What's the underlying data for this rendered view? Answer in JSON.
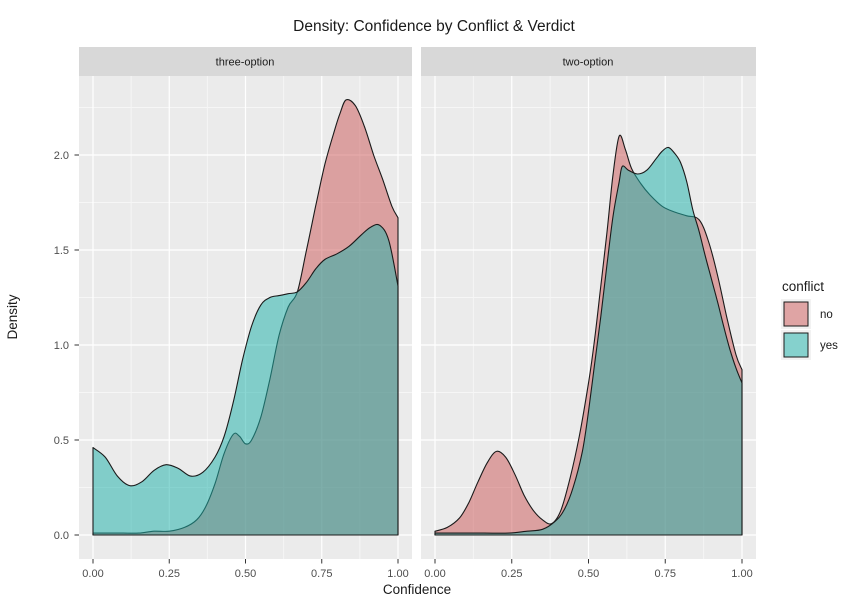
{
  "colors": {
    "panel_bg": "#EBEBEB",
    "strip_bg": "#D8D8D8",
    "grid_major": "#FFFFFF",
    "grid_minor": "#F6F6F6",
    "fill_no": "rgba(205,92,92,0.52)",
    "fill_yes": "rgba(32,178,170,0.52)",
    "curve_stroke": "#1A1A1A",
    "tick_stroke": "#333333",
    "axis_text": "#4D4D4D",
    "text": "#1A1A1A",
    "legend_key_bg": "#F2F2F2"
  },
  "chart_data": {
    "type": "area",
    "title": "Density: Confidence by Conflict & Verdict",
    "xlabel": "Confidence",
    "ylabel": "Density",
    "xlim": [
      0,
      1
    ],
    "ylim": [
      0,
      2.42
    ],
    "grid": true,
    "x_tick_values": [
      0,
      0.25,
      0.5,
      0.75,
      1.0
    ],
    "x_tick_labels": [
      "0.00",
      "0.25",
      "0.50",
      "0.75",
      "1.00"
    ],
    "y_tick_values": [
      0,
      0.5,
      1.0,
      1.5,
      2.0
    ],
    "y_tick_labels": [
      "0.0",
      "0.5",
      "1.0",
      "1.5",
      "2.0"
    ],
    "x_minor_values": [
      0.125,
      0.375,
      0.625,
      0.875
    ],
    "y_minor_values": [
      0.25,
      0.75,
      1.25,
      1.75,
      2.25
    ],
    "legend": {
      "title": "conflict",
      "position": "right",
      "entries": [
        {
          "label": "no",
          "fill": "rgba(205,92,92,0.52)"
        },
        {
          "label": "yes",
          "fill": "rgba(32,178,170,0.52)"
        }
      ]
    },
    "facets": [
      {
        "label": "three-option",
        "series": [
          {
            "name": "no",
            "x": [
              0.0,
              0.05,
              0.1,
              0.15,
              0.2,
              0.25,
              0.3,
              0.34,
              0.37,
              0.4,
              0.43,
              0.46,
              0.48,
              0.5,
              0.52,
              0.55,
              0.58,
              0.61,
              0.64,
              0.67,
              0.7,
              0.73,
              0.76,
              0.79,
              0.81,
              0.83,
              0.86,
              0.89,
              0.92,
              0.95,
              0.98,
              1.0
            ],
            "y": [
              0.01,
              0.01,
              0.01,
              0.01,
              0.02,
              0.02,
              0.04,
              0.08,
              0.15,
              0.27,
              0.43,
              0.53,
              0.52,
              0.48,
              0.5,
              0.62,
              0.82,
              1.05,
              1.2,
              1.28,
              1.5,
              1.73,
              1.95,
              2.12,
              2.22,
              2.29,
              2.26,
              2.15,
              2.0,
              1.87,
              1.73,
              1.67
            ]
          },
          {
            "name": "yes",
            "x": [
              0.0,
              0.04,
              0.08,
              0.12,
              0.16,
              0.2,
              0.24,
              0.28,
              0.32,
              0.36,
              0.4,
              0.43,
              0.46,
              0.49,
              0.52,
              0.55,
              0.58,
              0.61,
              0.64,
              0.67,
              0.7,
              0.73,
              0.76,
              0.8,
              0.84,
              0.88,
              0.91,
              0.94,
              0.97,
              1.0
            ],
            "y": [
              0.46,
              0.41,
              0.31,
              0.26,
              0.28,
              0.34,
              0.37,
              0.35,
              0.31,
              0.33,
              0.41,
              0.52,
              0.7,
              0.92,
              1.1,
              1.21,
              1.25,
              1.26,
              1.27,
              1.28,
              1.33,
              1.4,
              1.45,
              1.48,
              1.52,
              1.58,
              1.62,
              1.63,
              1.55,
              1.31
            ]
          }
        ]
      },
      {
        "label": "two-option",
        "series": [
          {
            "name": "no",
            "x": [
              0.0,
              0.04,
              0.08,
              0.11,
              0.14,
              0.17,
              0.2,
              0.23,
              0.26,
              0.29,
              0.32,
              0.35,
              0.38,
              0.41,
              0.44,
              0.47,
              0.5,
              0.52,
              0.54,
              0.56,
              0.58,
              0.6,
              0.62,
              0.64,
              0.67,
              0.7,
              0.74,
              0.78,
              0.82,
              0.86,
              0.89,
              0.92,
              0.95,
              0.98,
              1.0
            ],
            "y": [
              0.02,
              0.04,
              0.09,
              0.17,
              0.28,
              0.38,
              0.44,
              0.41,
              0.32,
              0.21,
              0.13,
              0.08,
              0.06,
              0.13,
              0.3,
              0.52,
              0.8,
              1.03,
              1.31,
              1.59,
              1.9,
              2.1,
              2.03,
              1.93,
              1.85,
              1.79,
              1.73,
              1.7,
              1.68,
              1.66,
              1.55,
              1.37,
              1.15,
              0.95,
              0.87
            ]
          },
          {
            "name": "yes",
            "x": [
              0.0,
              0.08,
              0.16,
              0.24,
              0.3,
              0.35,
              0.39,
              0.42,
              0.45,
              0.48,
              0.5,
              0.52,
              0.54,
              0.56,
              0.58,
              0.6,
              0.61,
              0.63,
              0.66,
              0.69,
              0.72,
              0.74,
              0.76,
              0.78,
              0.8,
              0.82,
              0.84,
              0.86,
              0.88,
              0.9,
              0.92,
              0.94,
              0.96,
              0.98,
              1.0
            ],
            "y": [
              0.01,
              0.01,
              0.01,
              0.01,
              0.02,
              0.03,
              0.07,
              0.13,
              0.25,
              0.44,
              0.65,
              0.9,
              1.15,
              1.42,
              1.68,
              1.86,
              1.94,
              1.92,
              1.9,
              1.92,
              1.98,
              2.02,
              2.04,
              2.01,
              1.96,
              1.86,
              1.71,
              1.6,
              1.47,
              1.35,
              1.23,
              1.1,
              0.98,
              0.88,
              0.8
            ]
          }
        ]
      }
    ]
  }
}
